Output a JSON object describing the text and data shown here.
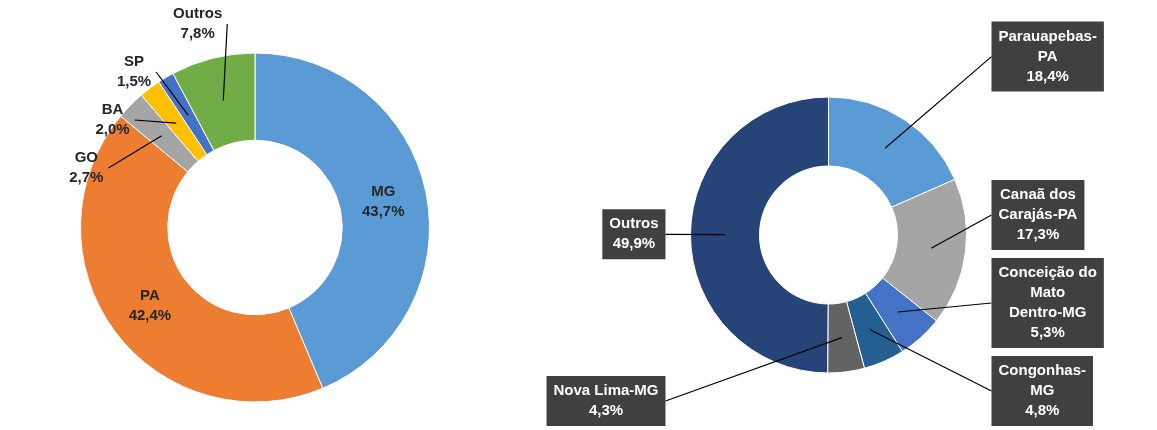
{
  "chart_data": [
    {
      "type": "donut",
      "categories": [
        "MG",
        "PA",
        "GO",
        "BA",
        "SP",
        "Outros"
      ],
      "values": [
        43.7,
        42.4,
        2.7,
        2.0,
        1.5,
        7.8
      ],
      "colors": [
        "#5b9bd5",
        "#ed7d31",
        "#a5a5a5",
        "#ffc000",
        "#4472c4",
        "#70ad47"
      ],
      "value_labels": [
        "43,7%",
        "42,4%",
        "2,7%",
        "2,0%",
        "1,5%",
        "7,8%"
      ],
      "legend": false
    },
    {
      "type": "donut",
      "categories": [
        "Parauapebas-PA",
        "Canaã dos Carajás-PA",
        "Conceição do Mato Dentro-MG",
        "Congonhas-MG",
        "Nova Lima-MG",
        "Outros"
      ],
      "values": [
        18.4,
        17.3,
        5.3,
        4.8,
        4.3,
        49.9
      ],
      "colors": [
        "#5b9bd5",
        "#a5a5a5",
        "#4472c4",
        "#255e91",
        "#636363",
        "#264478"
      ],
      "value_labels": [
        "18,4%",
        "17,3%",
        "5,3%",
        "4,8%",
        "4,3%",
        "49,9%"
      ],
      "legend": false
    }
  ]
}
